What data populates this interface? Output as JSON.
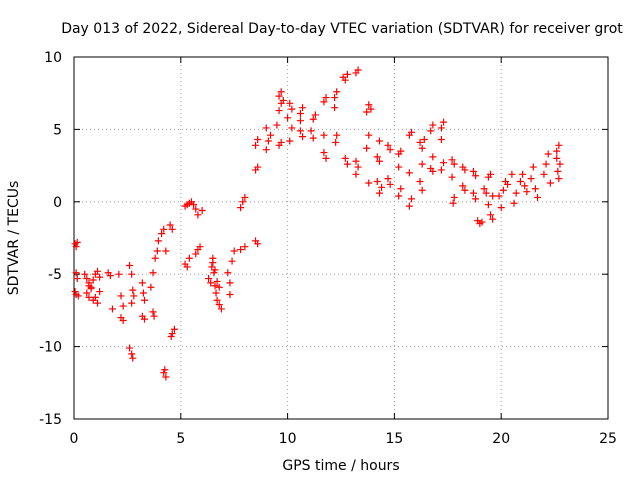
{
  "chart_data": {
    "type": "scatter",
    "title": "Day 013 of 2022, Sidereal Day-to-day VTEC variation (SDTVAR) for receiver grot",
    "xlabel": "GPS time / hours",
    "ylabel": "SDTVAR / TECUs",
    "xlim": [
      0,
      25
    ],
    "ylim": [
      -15,
      10
    ],
    "xticks": [
      0,
      5,
      10,
      15,
      20,
      25
    ],
    "yticks": [
      -15,
      -10,
      -5,
      0,
      5,
      10
    ],
    "xtick_labels": [
      "0",
      "5",
      "10",
      "15",
      "20",
      "25"
    ],
    "ytick_labels": [
      "-15",
      "-10",
      "-5",
      "0",
      "5",
      "10"
    ],
    "grid": true,
    "marker": "+",
    "series": [
      {
        "name": "SDTVAR",
        "color": "#ff0000",
        "points": [
          [
            0.05,
            -2.9
          ],
          [
            0.1,
            -3.1
          ],
          [
            0.15,
            -2.8
          ],
          [
            0.05,
            -6.2
          ],
          [
            0.1,
            -6.4
          ],
          [
            0.2,
            -6.5
          ],
          [
            0.1,
            -4.9
          ],
          [
            0.15,
            -5.3
          ],
          [
            0.5,
            -5.0
          ],
          [
            0.6,
            -5.3
          ],
          [
            0.7,
            -5.6
          ],
          [
            0.8,
            -5.9
          ],
          [
            0.9,
            -5.4
          ],
          [
            1.0,
            -5.0
          ],
          [
            1.1,
            -4.8
          ],
          [
            1.2,
            -5.2
          ],
          [
            0.6,
            -6.3
          ],
          [
            0.7,
            -6.6
          ],
          [
            0.9,
            -6.8
          ],
          [
            1.1,
            -7.0
          ],
          [
            0.7,
            -5.8
          ],
          [
            0.8,
            -6.0
          ],
          [
            1.0,
            -6.6
          ],
          [
            1.2,
            -6.2
          ],
          [
            1.6,
            -4.9
          ],
          [
            1.7,
            -5.1
          ],
          [
            1.8,
            -7.4
          ],
          [
            2.1,
            -5.0
          ],
          [
            2.2,
            -6.5
          ],
          [
            2.3,
            -7.2
          ],
          [
            2.2,
            -8.0
          ],
          [
            2.3,
            -8.2
          ],
          [
            2.6,
            -4.4
          ],
          [
            2.7,
            -5.0
          ],
          [
            2.75,
            -6.1
          ],
          [
            2.8,
            -6.5
          ],
          [
            2.7,
            -7.0
          ],
          [
            2.6,
            -10.1
          ],
          [
            2.7,
            -10.5
          ],
          [
            2.75,
            -10.8
          ],
          [
            3.2,
            -5.6
          ],
          [
            3.25,
            -6.3
          ],
          [
            3.3,
            -6.8
          ],
          [
            3.2,
            -7.9
          ],
          [
            3.3,
            -8.1
          ],
          [
            3.6,
            -5.9
          ],
          [
            3.7,
            -7.6
          ],
          [
            3.75,
            -7.9
          ],
          [
            3.7,
            -4.9
          ],
          [
            3.8,
            -3.9
          ],
          [
            3.9,
            -3.4
          ],
          [
            3.95,
            -2.7
          ],
          [
            4.1,
            -2.2
          ],
          [
            4.2,
            -1.9
          ],
          [
            4.3,
            -3.4
          ],
          [
            4.2,
            -11.8
          ],
          [
            4.3,
            -12.1
          ],
          [
            4.25,
            -11.6
          ],
          [
            4.5,
            -1.6
          ],
          [
            4.6,
            -1.9
          ],
          [
            4.7,
            -8.8
          ],
          [
            4.6,
            -9.1
          ],
          [
            4.55,
            -9.3
          ],
          [
            5.2,
            -0.3
          ],
          [
            5.3,
            -0.2
          ],
          [
            5.4,
            -0.1
          ],
          [
            5.5,
            0.0
          ],
          [
            5.6,
            -0.2
          ],
          [
            5.7,
            -0.5
          ],
          [
            5.8,
            -0.9
          ],
          [
            5.2,
            -4.3
          ],
          [
            5.3,
            -4.5
          ],
          [
            5.4,
            -3.9
          ],
          [
            5.7,
            -3.6
          ],
          [
            5.8,
            -3.3
          ],
          [
            5.9,
            -3.1
          ],
          [
            6.0,
            -0.6
          ],
          [
            6.3,
            -5.3
          ],
          [
            6.4,
            -5.6
          ],
          [
            6.45,
            -4.5
          ],
          [
            6.5,
            -4.2
          ],
          [
            6.55,
            -4.9
          ],
          [
            6.6,
            -5.8
          ],
          [
            6.65,
            -6.3
          ],
          [
            6.7,
            -6.8
          ],
          [
            6.8,
            -7.1
          ],
          [
            6.9,
            -7.4
          ],
          [
            6.5,
            -3.9
          ],
          [
            6.6,
            -4.7
          ],
          [
            6.7,
            -5.5
          ],
          [
            6.8,
            -5.9
          ],
          [
            7.2,
            -4.9
          ],
          [
            7.3,
            -5.6
          ],
          [
            7.3,
            -6.4
          ],
          [
            7.4,
            -4.1
          ],
          [
            7.5,
            -3.4
          ],
          [
            7.8,
            -3.3
          ],
          [
            8.0,
            -3.1
          ],
          [
            7.9,
            0.0
          ],
          [
            7.8,
            -0.4
          ],
          [
            8.0,
            0.3
          ],
          [
            8.5,
            -2.7
          ],
          [
            8.6,
            -2.9
          ],
          [
            8.5,
            2.2
          ],
          [
            8.6,
            2.4
          ],
          [
            8.5,
            3.9
          ],
          [
            8.6,
            4.3
          ],
          [
            9.0,
            3.6
          ],
          [
            9.1,
            4.2
          ],
          [
            9.0,
            5.1
          ],
          [
            9.2,
            4.6
          ],
          [
            9.6,
            3.9
          ],
          [
            9.7,
            4.1
          ],
          [
            9.5,
            5.3
          ],
          [
            9.6,
            6.3
          ],
          [
            9.7,
            6.8
          ],
          [
            9.6,
            7.3
          ],
          [
            9.7,
            7.6
          ],
          [
            9.8,
            7.0
          ],
          [
            10.1,
            6.8
          ],
          [
            10.2,
            6.4
          ],
          [
            10.0,
            5.8
          ],
          [
            10.2,
            5.1
          ],
          [
            10.1,
            4.2
          ],
          [
            10.6,
            5.6
          ],
          [
            10.6,
            6.1
          ],
          [
            10.7,
            6.5
          ],
          [
            10.6,
            4.9
          ],
          [
            10.7,
            4.5
          ],
          [
            11.1,
            4.9
          ],
          [
            11.2,
            5.7
          ],
          [
            11.3,
            6.0
          ],
          [
            11.2,
            4.4
          ],
          [
            11.7,
            6.9
          ],
          [
            11.8,
            7.2
          ],
          [
            11.7,
            3.4
          ],
          [
            11.8,
            3.0
          ],
          [
            11.7,
            4.6
          ],
          [
            12.2,
            7.2
          ],
          [
            12.3,
            7.6
          ],
          [
            12.2,
            6.5
          ],
          [
            12.3,
            4.6
          ],
          [
            12.25,
            4.1
          ],
          [
            12.6,
            8.6
          ],
          [
            12.7,
            8.4
          ],
          [
            12.8,
            8.8
          ],
          [
            12.7,
            3.0
          ],
          [
            12.8,
            2.6
          ],
          [
            13.2,
            8.9
          ],
          [
            13.3,
            9.1
          ],
          [
            13.2,
            2.8
          ],
          [
            13.3,
            2.4
          ],
          [
            13.2,
            1.9
          ],
          [
            13.7,
            6.2
          ],
          [
            13.8,
            6.7
          ],
          [
            13.9,
            6.4
          ],
          [
            13.8,
            4.6
          ],
          [
            13.7,
            3.7
          ],
          [
            13.8,
            1.3
          ],
          [
            14.2,
            3.1
          ],
          [
            14.3,
            2.8
          ],
          [
            14.3,
            4.2
          ],
          [
            14.2,
            1.4
          ],
          [
            14.3,
            0.6
          ],
          [
            14.4,
            1.0
          ],
          [
            14.7,
            3.9
          ],
          [
            14.8,
            3.6
          ],
          [
            14.7,
            1.6
          ],
          [
            14.8,
            1.2
          ],
          [
            15.2,
            3.3
          ],
          [
            15.3,
            3.5
          ],
          [
            15.2,
            2.4
          ],
          [
            15.3,
            0.9
          ],
          [
            15.2,
            0.4
          ],
          [
            15.7,
            4.6
          ],
          [
            15.8,
            4.8
          ],
          [
            15.7,
            2.0
          ],
          [
            15.8,
            0.2
          ],
          [
            15.7,
            -0.3
          ],
          [
            16.2,
            4.1
          ],
          [
            16.3,
            3.7
          ],
          [
            16.4,
            4.3
          ],
          [
            16.3,
            2.6
          ],
          [
            16.2,
            1.4
          ],
          [
            16.3,
            0.8
          ],
          [
            16.7,
            4.9
          ],
          [
            16.8,
            5.3
          ],
          [
            16.8,
            3.1
          ],
          [
            16.7,
            2.3
          ],
          [
            16.8,
            2.1
          ],
          [
            17.2,
            5.1
          ],
          [
            17.3,
            5.5
          ],
          [
            17.2,
            4.3
          ],
          [
            17.3,
            2.7
          ],
          [
            17.2,
            2.2
          ],
          [
            17.7,
            2.9
          ],
          [
            17.8,
            2.6
          ],
          [
            17.7,
            1.7
          ],
          [
            17.8,
            0.3
          ],
          [
            17.75,
            -0.1
          ],
          [
            18.2,
            2.4
          ],
          [
            18.3,
            2.2
          ],
          [
            18.2,
            1.1
          ],
          [
            18.3,
            0.8
          ],
          [
            18.7,
            2.1
          ],
          [
            18.8,
            1.8
          ],
          [
            18.7,
            0.6
          ],
          [
            18.8,
            0.2
          ],
          [
            18.9,
            -1.3
          ],
          [
            19.0,
            -1.5
          ],
          [
            19.1,
            -1.4
          ],
          [
            19.2,
            0.9
          ],
          [
            19.3,
            0.6
          ],
          [
            19.4,
            -0.2
          ],
          [
            19.5,
            -0.9
          ],
          [
            19.6,
            -1.2
          ],
          [
            19.4,
            1.7
          ],
          [
            19.5,
            1.9
          ],
          [
            19.6,
            0.4
          ],
          [
            19.9,
            0.4
          ],
          [
            20.0,
            -0.4
          ],
          [
            20.1,
            0.8
          ],
          [
            20.2,
            1.4
          ],
          [
            20.3,
            1.2
          ],
          [
            20.5,
            1.9
          ],
          [
            20.6,
            -0.1
          ],
          [
            20.7,
            0.6
          ],
          [
            20.9,
            1.4
          ],
          [
            21.0,
            1.9
          ],
          [
            21.1,
            1.1
          ],
          [
            21.2,
            0.7
          ],
          [
            21.4,
            1.6
          ],
          [
            21.5,
            2.4
          ],
          [
            21.6,
            0.9
          ],
          [
            21.7,
            0.3
          ],
          [
            22.0,
            1.9
          ],
          [
            22.1,
            2.6
          ],
          [
            22.2,
            3.3
          ],
          [
            22.3,
            1.3
          ],
          [
            22.6,
            3.5
          ],
          [
            22.7,
            3.9
          ],
          [
            22.75,
            2.6
          ],
          [
            22.65,
            2.1
          ],
          [
            22.7,
            1.6
          ],
          [
            22.6,
            3.0
          ]
        ]
      }
    ]
  }
}
